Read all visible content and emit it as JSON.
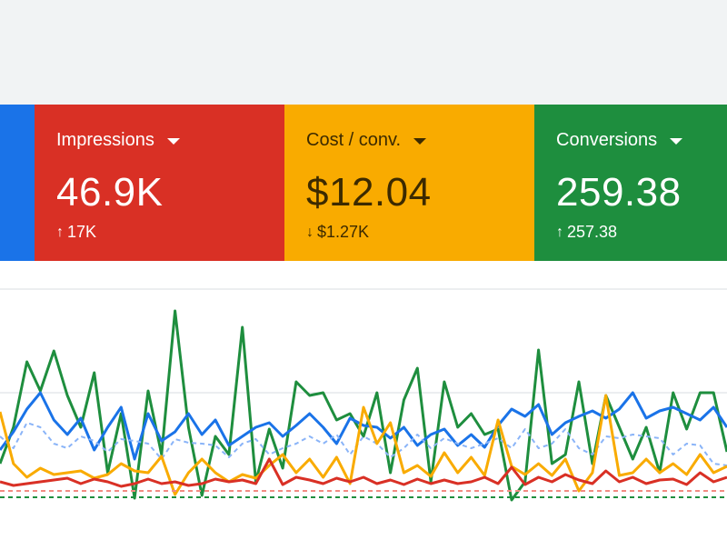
{
  "cards": [
    {
      "name": "Impressions",
      "value": "46.9K",
      "delta": "17K",
      "delta_dir": "↑",
      "color": "#d93025"
    },
    {
      "name": "Cost / conv.",
      "value": "$12.04",
      "delta": "$1.27K",
      "delta_dir": "↓",
      "color": "#f9ab00"
    },
    {
      "name": "Conversions",
      "value": "259.38",
      "delta": "257.38",
      "delta_dir": "↑",
      "color": "#1e8e3e"
    }
  ],
  "colors": {
    "blue": "#1a73e8",
    "red": "#d93025",
    "yellow": "#f9ab00",
    "green": "#1e8e3e",
    "light_blue": "#8ab4f8",
    "pink": "#f28b82"
  },
  "chart_data": {
    "type": "line",
    "grid": true,
    "series": [
      {
        "color": "#1e8e3e",
        "values": [
          510,
          470,
          398,
          430,
          386,
          435,
          470,
          410,
          520,
          455,
          548,
          430,
          500,
          342,
          470,
          545,
          480,
          500,
          360,
          530,
          472,
          515,
          420,
          435,
          432,
          462,
          455,
          480,
          432,
          520,
          440,
          405,
          530,
          420,
          470,
          455,
          478,
          472,
          550,
          530,
          385,
          510,
          500,
          420,
          510,
          435,
          470,
          505,
          470,
          520,
          432,
          472,
          432,
          432,
          497
        ]
      },
      {
        "color": "#1a73e8",
        "values": [
          495,
          475,
          450,
          432,
          462,
          478,
          460,
          495,
          470,
          448,
          505,
          455,
          485,
          475,
          455,
          478,
          462,
          490,
          480,
          470,
          465,
          480,
          468,
          455,
          470,
          488,
          460,
          468,
          470,
          482,
          470,
          490,
          478,
          472,
          490,
          478,
          492,
          468,
          450,
          458,
          445,
          478,
          465,
          458,
          452,
          460,
          450,
          432,
          460,
          452,
          448,
          455,
          462,
          448,
          470
        ]
      },
      {
        "color": "#8ab4f8",
        "values": [
          480,
          493,
          465,
          470,
          488,
          493,
          480,
          485,
          497,
          483,
          485,
          488,
          505,
          483,
          487,
          488,
          490,
          503,
          488,
          483,
          500,
          493,
          488,
          480,
          488,
          478,
          500,
          480,
          488,
          503,
          493,
          478,
          493,
          482,
          488,
          493,
          488,
          482,
          493,
          472,
          493,
          488,
          472,
          493,
          500,
          480,
          482,
          478,
          480,
          482,
          500,
          488,
          490,
          510,
          512
        ]
      },
      {
        "color": "#f9ab00",
        "values": [
          453,
          510,
          525,
          515,
          522,
          520,
          518,
          526,
          522,
          510,
          518,
          520,
          502,
          544,
          520,
          505,
          520,
          530,
          522,
          526,
          512,
          500,
          520,
          505,
          525,
          503,
          532,
          448,
          488,
          465,
          520,
          512,
          524,
          498,
          520,
          503,
          523,
          462,
          513,
          522,
          510,
          523,
          505,
          540,
          520,
          435,
          523,
          520,
          505,
          520,
          510,
          522,
          500,
          520,
          513
        ]
      },
      {
        "color": "#d93025",
        "values": [
          530,
          534,
          532,
          530,
          528,
          526,
          532,
          527,
          530,
          535,
          532,
          527,
          532,
          530,
          534,
          532,
          527,
          530,
          528,
          532,
          505,
          533,
          525,
          528,
          532,
          526,
          530,
          525,
          532,
          528,
          533,
          527,
          532,
          528,
          532,
          530,
          525,
          532,
          514,
          533,
          525,
          530,
          522,
          528,
          532,
          518,
          530,
          525,
          532,
          528,
          527,
          533,
          520,
          530,
          525
        ]
      },
      {
        "color": "#f28b82",
        "values": [
          540,
          540,
          540,
          540,
          540,
          540,
          540,
          540,
          540,
          540,
          540,
          540,
          540,
          540,
          540,
          540,
          540,
          540,
          540,
          540,
          540,
          540,
          540,
          540,
          540,
          540,
          540,
          540,
          540,
          540,
          540,
          540,
          540,
          540,
          540,
          540,
          540,
          540,
          540,
          540,
          540,
          540,
          540,
          540,
          540,
          540,
          540,
          540,
          540,
          540,
          540,
          540,
          540,
          540,
          540
        ]
      },
      {
        "color": "#1e8e3e",
        "values": [
          547,
          547,
          547,
          547,
          547,
          547,
          547,
          547,
          547,
          547,
          547,
          547,
          547,
          547,
          547,
          547,
          547,
          547,
          547,
          547,
          547,
          547,
          547,
          547,
          547,
          547,
          547,
          547,
          547,
          547,
          547,
          547,
          547,
          547,
          547,
          547,
          547,
          547,
          547,
          547,
          547,
          547,
          547,
          547,
          547,
          547,
          547,
          547,
          547,
          547,
          547,
          547,
          547,
          547,
          547
        ]
      }
    ],
    "dash": [
      false,
      false,
      true,
      false,
      false,
      true,
      true
    ],
    "ylim": [
      300,
      560
    ]
  }
}
